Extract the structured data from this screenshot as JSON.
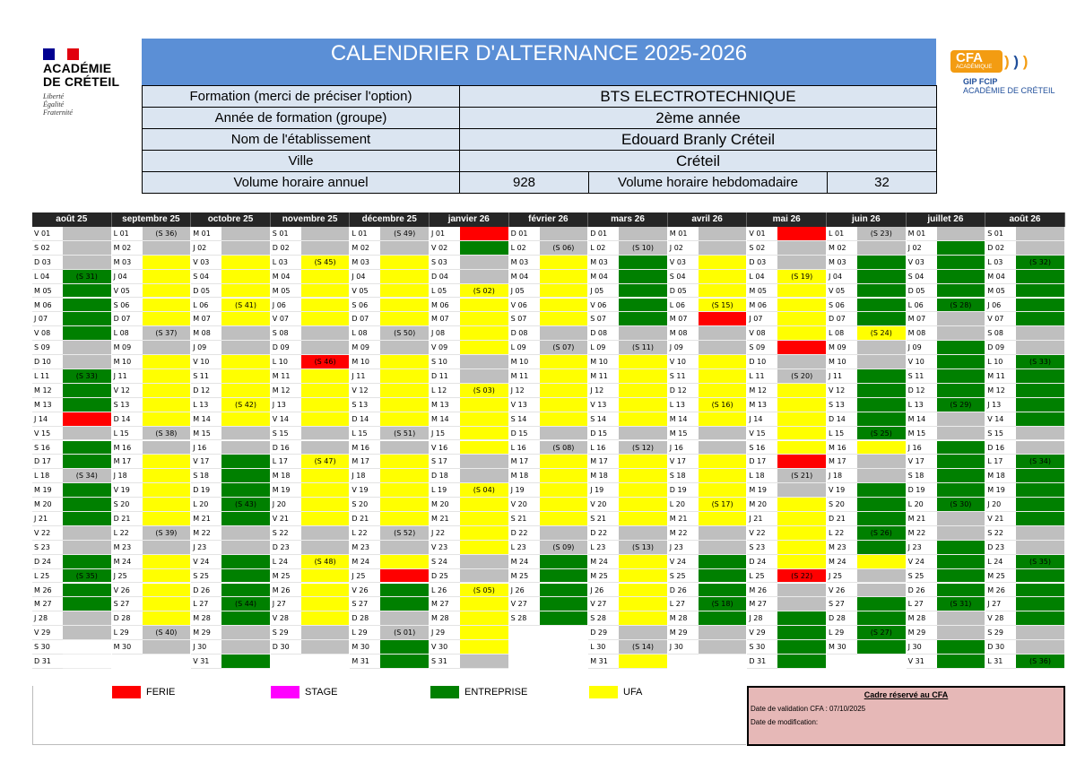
{
  "academy": {
    "name": "ACADÉMIE\nDE CRÉTEIL",
    "motto": "Liberté\nÉgalité\nFraternité"
  },
  "cfa_logo": {
    "badge": "CFA",
    "badge_sub": "ACADÉMIQUE",
    "line1": "GIP FCIP",
    "line2": "ACADÉMIE DE CRÉTEIL"
  },
  "title": "CALENDRIER D'ALTERNANCE 2025-2026",
  "info": [
    {
      "label": "Formation (merci de préciser l'option)",
      "value": "BTS  ELECTROTECHNIQUE"
    },
    {
      "label": "Année de formation (groupe)",
      "value": "2ème année"
    },
    {
      "label": "Nom de l'établissement",
      "value": "Edouard Branly Créteil"
    },
    {
      "label": "Ville",
      "value": "Créteil"
    }
  ],
  "volume": {
    "annual_label": "Volume horaire annuel",
    "annual_value": "928",
    "weekly_label": "Volume horaire hebdomadaire",
    "weekly_value": "32"
  },
  "colors": {
    "F": "#ff0000",
    "E": "#008000",
    "U": "#ffff00",
    "G": "#bfbfbf",
    "W": "#ffffff",
    "stage": "#ff00ff"
  },
  "months": [
    {
      "name": "août 25",
      "year": 2025,
      "month": 8
    },
    {
      "name": "septembre 25",
      "year": 2025,
      "month": 9
    },
    {
      "name": "octobre 25",
      "year": 2025,
      "month": 10
    },
    {
      "name": "novembre 25",
      "year": 2025,
      "month": 11
    },
    {
      "name": "décembre 25",
      "year": 2025,
      "month": 12
    },
    {
      "name": "janvier 26",
      "year": 2026,
      "month": 1
    },
    {
      "name": "février 26",
      "year": 2026,
      "month": 2
    },
    {
      "name": "mars 26",
      "year": 2026,
      "month": 3
    },
    {
      "name": "avril 26",
      "year": 2026,
      "month": 4
    },
    {
      "name": "mai 26",
      "year": 2026,
      "month": 5
    },
    {
      "name": "juin 26",
      "year": 2026,
      "month": 6
    },
    {
      "name": "juillet 26",
      "year": 2026,
      "month": 7
    },
    {
      "name": "août 26",
      "year": 2026,
      "month": 8
    }
  ],
  "day_letters": [
    "D",
    "L",
    "M",
    "M",
    "J",
    "V",
    "S"
  ],
  "week_labels": [
    [
      "(S 31)",
      "(S 33)",
      "(S 34)",
      "(S 35)"
    ],
    [
      "(S 36)",
      "(S 37)",
      "(S 38)",
      "(S 39)",
      "(S 40)"
    ],
    [
      "(S 41)",
      "(S 42)",
      "(S 43)",
      "(S 44)"
    ],
    [
      "(S 45)",
      "(S 46)",
      "(S 47)",
      "(S 48)"
    ],
    [
      "(S 49)",
      "(S 50)",
      "(S 51)",
      "(S 52)",
      "(S 01)"
    ],
    [
      "(S 02)",
      "(S 03)",
      "(S 04)",
      "(S 05)"
    ],
    [
      "(S 06)",
      "(S 07)",
      "(S 08)",
      "(S 09)"
    ],
    [
      "(S 10)",
      "(S 11)",
      "(S 12)",
      "(S 13)",
      "(S 14)"
    ],
    [
      "(S 15)",
      "(S 16)",
      "(S 17)",
      "(S 18)"
    ],
    [
      "(S 19)",
      "(S 20)",
      "(S 21)",
      "(S 22)"
    ],
    [
      "(S 23)",
      "(S 24)",
      "(S 25)",
      "(S 26)",
      "(S 27)"
    ],
    [
      "(S 28)",
      "(S 29)",
      "(S 30)",
      "(S 31)"
    ],
    [
      "(S 32)",
      "(S 33)",
      "(S 34)",
      "(S 35)",
      "(S 36)"
    ]
  ],
  "status": [
    "GGGEEEEEGGEEEFGEEGEEEGGEEEEGG",
    "GGUUUUUGGUUUUUGGUUUUUGGUUUUUGGW",
    "GGUUUUUGGUUUUUGGEEEEEGGEEEEEGGE",
    "GGUUUUUGGFUUUUGGUUUUUGGUUUUUGGW",
    "GGUUUUUGGUUUUUGGUUUUUGGUFEEGGEEGG",
    "FEGGUUUUUGGUUUUUGGUUUUUGGUUUUUGG",
    "GGUUUUUGGUUUUUGGUUUUUGGEEEEEGGWW",
    "GGEEEEEGGUUUUUGGUUUUUGGUUUUUGGUG",
    "GGUUUUFGGUUUUUGGUUUUUGGEEEEEGGW",
    "FGGUUUUUFGGUUUUUFGGUUUUUFGGEEEEEGG",
    "GGEEEEEUGGEEEEEUGGEEEEEUGGEEEEEW",
    "GEEEEEGGEEEEEGGEEEEEGGEEEEEGGEEE",
    "GGEEEEEGGEEEEEGGEEEEEGGEEEEEGGE"
  ],
  "legend": [
    {
      "key": "F",
      "label": "FERIE"
    },
    {
      "key": "stage",
      "label": "STAGE"
    },
    {
      "key": "E",
      "label": "ENTREPRISE"
    },
    {
      "key": "U",
      "label": "UFA"
    }
  ],
  "cadre": {
    "title": "Cadre réservé au CFA",
    "validation": "Date de validation CFA : 07/10/2025",
    "modification": "Date de modification:"
  }
}
